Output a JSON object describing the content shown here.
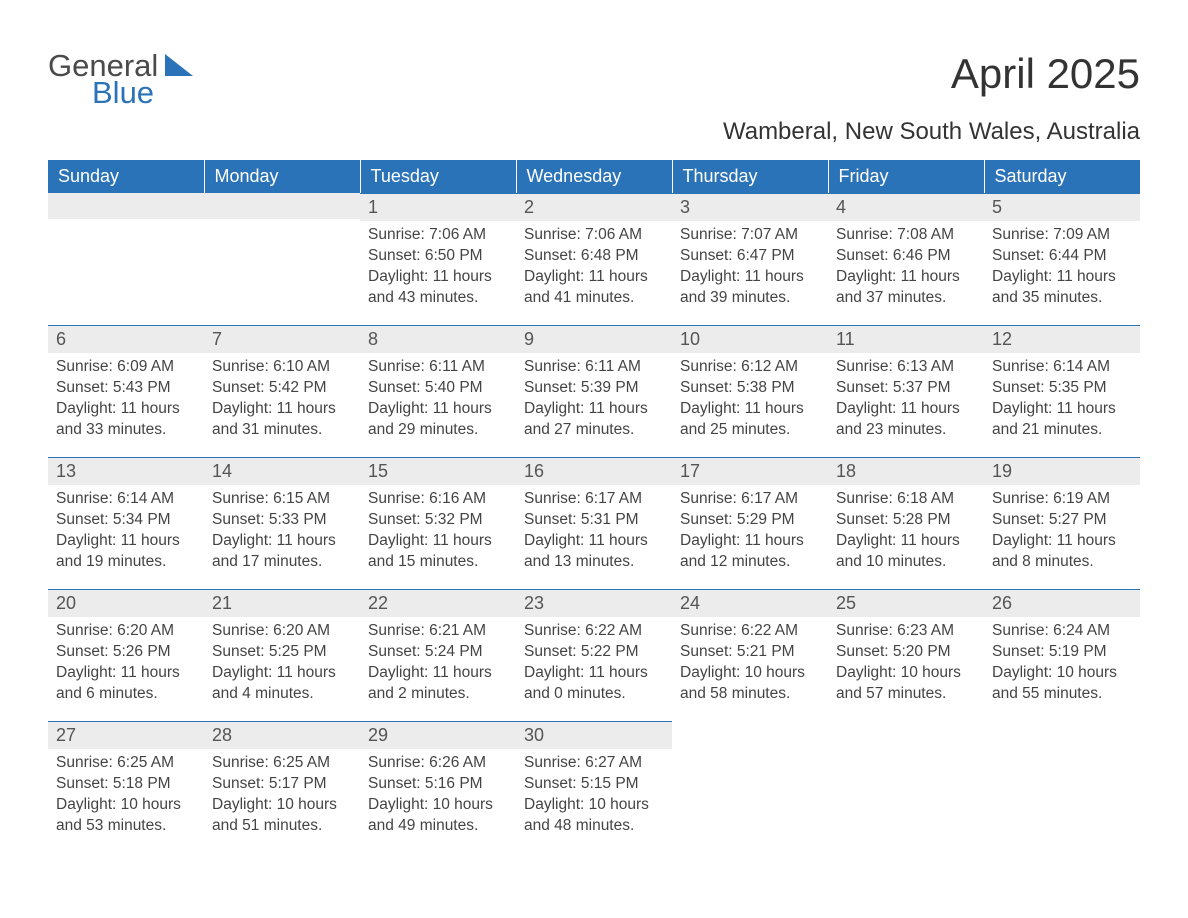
{
  "logo": {
    "text1": "General",
    "text2": "Blue",
    "color1": "#4a4a4a",
    "color2": "#2b73b8",
    "triangle_color": "#2b73b8"
  },
  "title": "April 2025",
  "subtitle": "Wamberal, New South Wales, Australia",
  "style": {
    "header_bg": "#2b73b8",
    "header_fg": "#ffffff",
    "daynum_bg": "#ececec",
    "border_color": "#2b73b8",
    "body_fg": "#444444",
    "title_fontsize": 42,
    "subtitle_fontsize": 24,
    "th_fontsize": 18,
    "cell_fontsize": 15.5
  },
  "days_of_week": [
    "Sunday",
    "Monday",
    "Tuesday",
    "Wednesday",
    "Thursday",
    "Friday",
    "Saturday"
  ],
  "grid": [
    [
      null,
      null,
      {
        "n": "1",
        "sr": "7:06 AM",
        "ss": "6:50 PM",
        "dl": "11 hours and 43 minutes."
      },
      {
        "n": "2",
        "sr": "7:06 AM",
        "ss": "6:48 PM",
        "dl": "11 hours and 41 minutes."
      },
      {
        "n": "3",
        "sr": "7:07 AM",
        "ss": "6:47 PM",
        "dl": "11 hours and 39 minutes."
      },
      {
        "n": "4",
        "sr": "7:08 AM",
        "ss": "6:46 PM",
        "dl": "11 hours and 37 minutes."
      },
      {
        "n": "5",
        "sr": "7:09 AM",
        "ss": "6:44 PM",
        "dl": "11 hours and 35 minutes."
      }
    ],
    [
      {
        "n": "6",
        "sr": "6:09 AM",
        "ss": "5:43 PM",
        "dl": "11 hours and 33 minutes."
      },
      {
        "n": "7",
        "sr": "6:10 AM",
        "ss": "5:42 PM",
        "dl": "11 hours and 31 minutes."
      },
      {
        "n": "8",
        "sr": "6:11 AM",
        "ss": "5:40 PM",
        "dl": "11 hours and 29 minutes."
      },
      {
        "n": "9",
        "sr": "6:11 AM",
        "ss": "5:39 PM",
        "dl": "11 hours and 27 minutes."
      },
      {
        "n": "10",
        "sr": "6:12 AM",
        "ss": "5:38 PM",
        "dl": "11 hours and 25 minutes."
      },
      {
        "n": "11",
        "sr": "6:13 AM",
        "ss": "5:37 PM",
        "dl": "11 hours and 23 minutes."
      },
      {
        "n": "12",
        "sr": "6:14 AM",
        "ss": "5:35 PM",
        "dl": "11 hours and 21 minutes."
      }
    ],
    [
      {
        "n": "13",
        "sr": "6:14 AM",
        "ss": "5:34 PM",
        "dl": "11 hours and 19 minutes."
      },
      {
        "n": "14",
        "sr": "6:15 AM",
        "ss": "5:33 PM",
        "dl": "11 hours and 17 minutes."
      },
      {
        "n": "15",
        "sr": "6:16 AM",
        "ss": "5:32 PM",
        "dl": "11 hours and 15 minutes."
      },
      {
        "n": "16",
        "sr": "6:17 AM",
        "ss": "5:31 PM",
        "dl": "11 hours and 13 minutes."
      },
      {
        "n": "17",
        "sr": "6:17 AM",
        "ss": "5:29 PM",
        "dl": "11 hours and 12 minutes."
      },
      {
        "n": "18",
        "sr": "6:18 AM",
        "ss": "5:28 PM",
        "dl": "11 hours and 10 minutes."
      },
      {
        "n": "19",
        "sr": "6:19 AM",
        "ss": "5:27 PM",
        "dl": "11 hours and 8 minutes."
      }
    ],
    [
      {
        "n": "20",
        "sr": "6:20 AM",
        "ss": "5:26 PM",
        "dl": "11 hours and 6 minutes."
      },
      {
        "n": "21",
        "sr": "6:20 AM",
        "ss": "5:25 PM",
        "dl": "11 hours and 4 minutes."
      },
      {
        "n": "22",
        "sr": "6:21 AM",
        "ss": "5:24 PM",
        "dl": "11 hours and 2 minutes."
      },
      {
        "n": "23",
        "sr": "6:22 AM",
        "ss": "5:22 PM",
        "dl": "11 hours and 0 minutes."
      },
      {
        "n": "24",
        "sr": "6:22 AM",
        "ss": "5:21 PM",
        "dl": "10 hours and 58 minutes."
      },
      {
        "n": "25",
        "sr": "6:23 AM",
        "ss": "5:20 PM",
        "dl": "10 hours and 57 minutes."
      },
      {
        "n": "26",
        "sr": "6:24 AM",
        "ss": "5:19 PM",
        "dl": "10 hours and 55 minutes."
      }
    ],
    [
      {
        "n": "27",
        "sr": "6:25 AM",
        "ss": "5:18 PM",
        "dl": "10 hours and 53 minutes."
      },
      {
        "n": "28",
        "sr": "6:25 AM",
        "ss": "5:17 PM",
        "dl": "10 hours and 51 minutes."
      },
      {
        "n": "29",
        "sr": "6:26 AM",
        "ss": "5:16 PM",
        "dl": "10 hours and 49 minutes."
      },
      {
        "n": "30",
        "sr": "6:27 AM",
        "ss": "5:15 PM",
        "dl": "10 hours and 48 minutes."
      },
      null,
      null,
      null
    ]
  ],
  "labels": {
    "sunrise": "Sunrise: ",
    "sunset": "Sunset: ",
    "daylight": "Daylight: "
  }
}
